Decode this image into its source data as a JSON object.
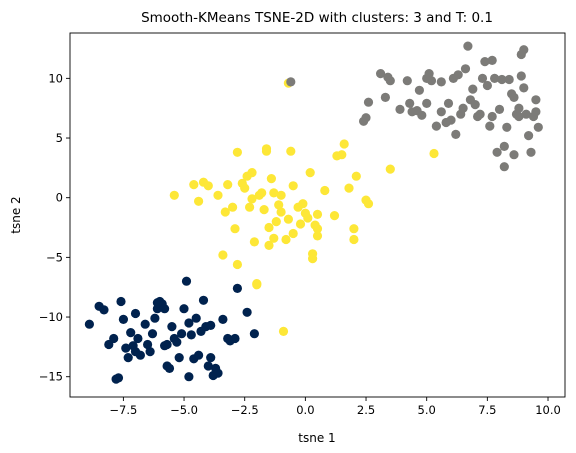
{
  "chart_data": {
    "type": "scatter",
    "title": "Smooth-KMeans TSNE-2D with clusters: 3 and T: 0.1",
    "xlabel": "tsne 1",
    "ylabel": "tsne 2",
    "xlim": [
      -9.7,
      10.7
    ],
    "ylim": [
      -16.7,
      13.8
    ],
    "x_ticks": [
      -7.5,
      -5.0,
      -2.5,
      0.0,
      2.5,
      5.0,
      7.5,
      10.0
    ],
    "x_tick_labels": [
      "−7.5",
      "−5.0",
      "−2.5",
      "0.0",
      "2.5",
      "5.0",
      "7.5",
      "10.0"
    ],
    "y_ticks": [
      -15,
      -10,
      -5,
      0,
      5,
      10
    ],
    "y_tick_labels": [
      "−15",
      "−10",
      "−5",
      "0",
      "5",
      "10"
    ],
    "grid": false,
    "series": [
      {
        "color": "#00224e",
        "points": [
          [
            -8.9,
            -10.6
          ],
          [
            -8.5,
            -9.1
          ],
          [
            -8.3,
            -9.4
          ],
          [
            -8.1,
            -12.3
          ],
          [
            -7.9,
            -11.8
          ],
          [
            -7.7,
            -15.1
          ],
          [
            -7.8,
            -15.2
          ],
          [
            -7.6,
            -8.7
          ],
          [
            -7.5,
            -10.2
          ],
          [
            -7.4,
            -12.6
          ],
          [
            -7.3,
            -13.4
          ],
          [
            -7.2,
            -11.3
          ],
          [
            -7.0,
            -9.7
          ],
          [
            -6.9,
            -11.8
          ],
          [
            -6.6,
            -10.6
          ],
          [
            -6.5,
            -12.3
          ],
          [
            -6.4,
            -12.9
          ],
          [
            -6.3,
            -11.4
          ],
          [
            -6.2,
            -10.1
          ],
          [
            -6.1,
            -9.3
          ],
          [
            -6.0,
            -8.7
          ],
          [
            -5.9,
            -8.9
          ],
          [
            -5.8,
            -9.3
          ],
          [
            -5.8,
            -12.4
          ],
          [
            -5.7,
            -14.1
          ],
          [
            -5.6,
            -14.3
          ],
          [
            -5.5,
            -10.8
          ],
          [
            -5.4,
            -11.8
          ],
          [
            -5.3,
            -12.1
          ],
          [
            -5.2,
            -13.4
          ],
          [
            -5.0,
            -9.3
          ],
          [
            -4.9,
            -7.0
          ],
          [
            -4.8,
            -10.5
          ],
          [
            -4.8,
            -15.0
          ],
          [
            -4.7,
            -11.5
          ],
          [
            -4.6,
            -13.5
          ],
          [
            -4.5,
            -10.1
          ],
          [
            -4.3,
            -11.2
          ],
          [
            -4.2,
            -8.6
          ],
          [
            -4.1,
            -10.8
          ],
          [
            -4.0,
            -14.1
          ],
          [
            -3.9,
            -13.4
          ],
          [
            -3.9,
            -10.7
          ],
          [
            -3.8,
            -14.9
          ],
          [
            -3.7,
            -14.3
          ],
          [
            -3.6,
            -14.7
          ],
          [
            -3.4,
            -10.2
          ],
          [
            -3.2,
            -11.8
          ],
          [
            -3.1,
            -12.0
          ],
          [
            -2.9,
            -11.8
          ],
          [
            -2.8,
            -7.6
          ],
          [
            -2.4,
            -9.6
          ],
          [
            -2.1,
            -11.4
          ],
          [
            -5.7,
            -12.3
          ],
          [
            -6.8,
            -13.2
          ],
          [
            -7.0,
            -12.9
          ],
          [
            -4.4,
            -13.2
          ],
          [
            -6.1,
            -8.8
          ],
          [
            -5.1,
            -11.4
          ],
          [
            -7.1,
            -12.4
          ]
        ]
      },
      {
        "color": "#fde737",
        "points": [
          [
            -5.4,
            0.2
          ],
          [
            -4.6,
            1.1
          ],
          [
            -4.4,
            -0.3
          ],
          [
            -4.2,
            1.3
          ],
          [
            -4.0,
            1.0
          ],
          [
            -3.6,
            0.2
          ],
          [
            -3.4,
            -4.8
          ],
          [
            -3.3,
            -1.2
          ],
          [
            -3.2,
            1.1
          ],
          [
            -3.0,
            -0.8
          ],
          [
            -2.9,
            -2.6
          ],
          [
            -2.8,
            3.8
          ],
          [
            -2.8,
            -5.6
          ],
          [
            -2.6,
            1.2
          ],
          [
            -2.5,
            0.8
          ],
          [
            -2.4,
            1.8
          ],
          [
            -2.3,
            -0.8
          ],
          [
            -2.2,
            2.1
          ],
          [
            -2.1,
            -3.7
          ],
          [
            -2.0,
            -7.2
          ],
          [
            -1.9,
            0.2
          ],
          [
            -1.8,
            0.4
          ],
          [
            -1.7,
            -1.0
          ],
          [
            -1.6,
            3.9
          ],
          [
            -1.6,
            4.1
          ],
          [
            -1.5,
            -4.0
          ],
          [
            -1.4,
            1.6
          ],
          [
            -1.3,
            -3.4
          ],
          [
            -1.2,
            -2.0
          ],
          [
            -1.1,
            -0.6
          ],
          [
            -1.0,
            0.2
          ],
          [
            -1.0,
            -1.2
          ],
          [
            -0.9,
            -11.2
          ],
          [
            -0.8,
            -3.5
          ],
          [
            -0.7,
            -1.8
          ],
          [
            -0.6,
            3.9
          ],
          [
            -0.5,
            1.0
          ],
          [
            -0.5,
            -3.0
          ],
          [
            -0.3,
            -0.8
          ],
          [
            -0.2,
            -2.2
          ],
          [
            -0.1,
            -0.5
          ],
          [
            0.0,
            -1.3
          ],
          [
            0.2,
            2.1
          ],
          [
            0.3,
            -4.7
          ],
          [
            0.4,
            -2.3
          ],
          [
            0.5,
            -3.2
          ],
          [
            0.5,
            -1.4
          ],
          [
            0.8,
            0.6
          ],
          [
            1.2,
            -1.5
          ],
          [
            1.3,
            3.5
          ],
          [
            1.5,
            3.6
          ],
          [
            1.6,
            4.5
          ],
          [
            1.8,
            0.8
          ],
          [
            2.0,
            -2.6
          ],
          [
            2.0,
            -3.5
          ],
          [
            2.1,
            1.8
          ],
          [
            2.5,
            -0.2
          ],
          [
            2.6,
            -0.5
          ],
          [
            3.5,
            2.4
          ],
          [
            5.3,
            3.7
          ],
          [
            -0.7,
            9.6
          ],
          [
            -2.0,
            -7.3
          ],
          [
            -1.3,
            0.4
          ],
          [
            0.3,
            -5.1
          ],
          [
            -2.2,
            -0.1
          ],
          [
            0.1,
            -1.7
          ],
          [
            0.5,
            -2.6
          ],
          [
            -1.5,
            -2.5
          ]
        ]
      },
      {
        "color": "#7c7b78",
        "points": [
          [
            -0.6,
            9.7
          ],
          [
            2.4,
            6.4
          ],
          [
            2.5,
            6.7
          ],
          [
            2.6,
            8.0
          ],
          [
            3.1,
            10.4
          ],
          [
            3.3,
            8.4
          ],
          [
            3.4,
            10.1
          ],
          [
            3.5,
            9.8
          ],
          [
            4.2,
            9.8
          ],
          [
            4.3,
            7.9
          ],
          [
            4.4,
            7.2
          ],
          [
            4.6,
            7.3
          ],
          [
            4.7,
            9.0
          ],
          [
            5.0,
            10.0
          ],
          [
            5.1,
            10.4
          ],
          [
            5.2,
            9.8
          ],
          [
            5.4,
            6.0
          ],
          [
            5.6,
            7.2
          ],
          [
            5.6,
            9.7
          ],
          [
            5.8,
            6.3
          ],
          [
            6.0,
            6.5
          ],
          [
            6.1,
            10.0
          ],
          [
            6.3,
            10.3
          ],
          [
            6.4,
            7.0
          ],
          [
            6.5,
            7.5
          ],
          [
            6.6,
            10.8
          ],
          [
            6.7,
            12.7
          ],
          [
            6.8,
            8.2
          ],
          [
            7.0,
            7.8
          ],
          [
            7.1,
            6.8
          ],
          [
            7.2,
            7.0
          ],
          [
            7.3,
            10.0
          ],
          [
            7.4,
            11.4
          ],
          [
            7.5,
            9.4
          ],
          [
            7.6,
            6.0
          ],
          [
            7.7,
            11.5
          ],
          [
            7.8,
            10.0
          ],
          [
            7.9,
            3.8
          ],
          [
            8.0,
            7.4
          ],
          [
            8.1,
            9.9
          ],
          [
            8.2,
            4.3
          ],
          [
            8.2,
            2.6
          ],
          [
            8.3,
            5.9
          ],
          [
            8.4,
            9.9
          ],
          [
            8.5,
            8.7
          ],
          [
            8.6,
            8.4
          ],
          [
            8.7,
            7.0
          ],
          [
            8.8,
            7.5
          ],
          [
            8.9,
            10.2
          ],
          [
            9.0,
            12.4
          ],
          [
            8.9,
            12.0
          ],
          [
            9.1,
            7.0
          ],
          [
            9.2,
            5.2
          ],
          [
            9.3,
            3.8
          ],
          [
            9.4,
            6.8
          ],
          [
            9.5,
            8.2
          ],
          [
            9.6,
            5.9
          ],
          [
            9.5,
            7.2
          ],
          [
            8.8,
            6.8
          ],
          [
            3.9,
            7.4
          ],
          [
            4.8,
            6.9
          ],
          [
            6.2,
            5.3
          ],
          [
            5.9,
            7.9
          ],
          [
            8.6,
            3.6
          ],
          [
            6.9,
            9.1
          ],
          [
            7.7,
            6.8
          ],
          [
            9.0,
            9.2
          ],
          [
            5.0,
            7.9
          ]
        ]
      }
    ]
  }
}
